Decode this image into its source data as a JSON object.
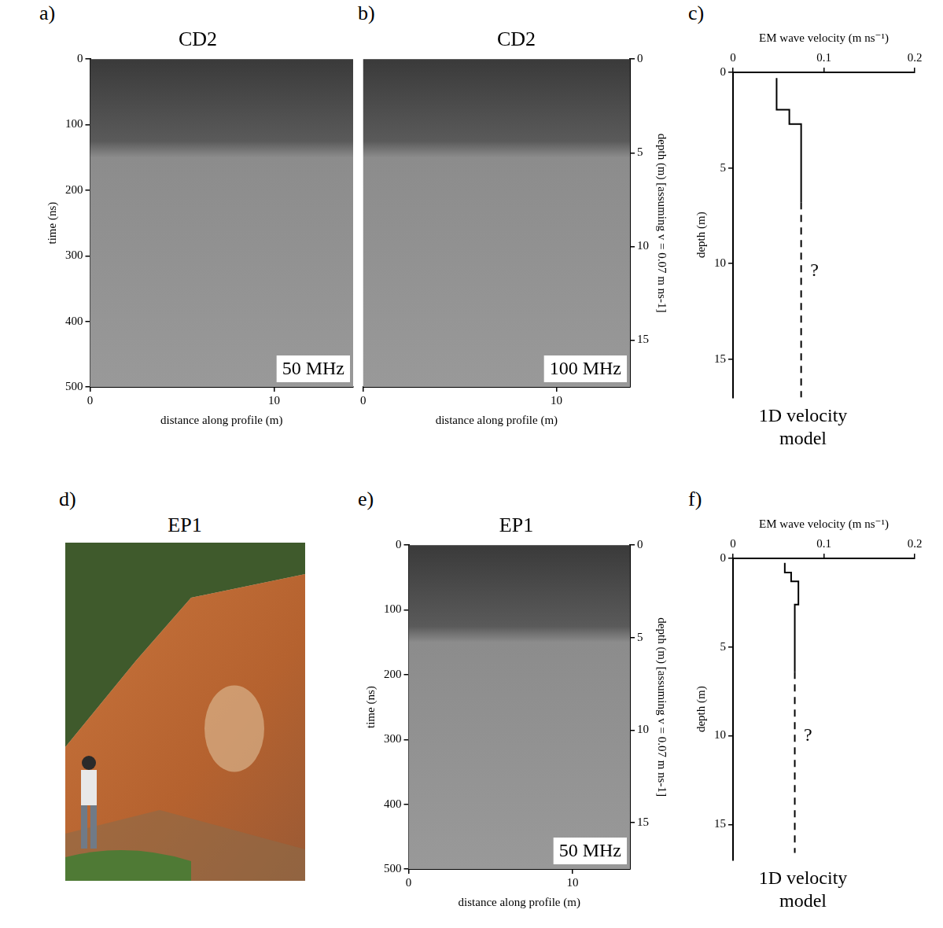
{
  "chart_data": [
    {
      "panel": "a)",
      "type": "radargram",
      "title": "CD2",
      "label": "50 MHz",
      "x_label": "distance along profile (m)",
      "y_label": "time (ns)",
      "xlim": [
        0,
        14.3
      ],
      "xticks": [
        0,
        10
      ],
      "ylim": [
        0,
        500
      ],
      "yticks": [
        0,
        100,
        200,
        300,
        400,
        500
      ]
    },
    {
      "panel": "b)",
      "type": "radargram",
      "title": "CD2",
      "label": "100 MHz",
      "x_label": "distance along profile (m)",
      "y2_label": "depth (m) [assuming v = 0.07 m ns-1]",
      "xlim": [
        0,
        13.8
      ],
      "xticks": [
        0,
        10
      ],
      "y2lim": [
        0,
        17.5
      ],
      "y2ticks": [
        0,
        5,
        10,
        15
      ]
    },
    {
      "panel": "c)",
      "type": "line",
      "title": "1D velocity model",
      "x_label": "EM wave velocity (m ns⁻¹)",
      "y_label": "depth (m)",
      "xlim": [
        0,
        0.2
      ],
      "xticks": [
        0,
        0.1,
        0.2
      ],
      "ylim": [
        0,
        17
      ],
      "yticks": [
        0,
        5,
        10,
        15
      ],
      "series": [
        {
          "line_style": "solid",
          "color": "#000000",
          "x": [
            0.048,
            0.048,
            0.062,
            0.062,
            0.075,
            0.075
          ],
          "y": [
            0.3,
            1.95,
            1.95,
            2.7,
            2.7,
            6.8
          ]
        },
        {
          "line_style": "dashed",
          "color": "#000000",
          "x": [
            0.075,
            0.075
          ],
          "y": [
            6.8,
            17
          ]
        }
      ],
      "annotations": [
        {
          "text": "?",
          "x": 0.085,
          "y": 10.4
        }
      ]
    },
    {
      "panel": "d)",
      "type": "image",
      "title": "EP1"
    },
    {
      "panel": "e)",
      "type": "radargram",
      "title": "EP1",
      "label": "50 MHz",
      "x_label": "distance along profile (m)",
      "y_label": "time (ns)",
      "y2_label": "depth (m) [assuming v = 0.07 m ns-1]",
      "xlim": [
        0,
        13.5
      ],
      "xticks": [
        0,
        10
      ],
      "ylim": [
        0,
        500
      ],
      "yticks": [
        0,
        100,
        200,
        300,
        400,
        500
      ],
      "y2lim": [
        0,
        17.5
      ],
      "y2ticks": [
        0,
        5,
        10,
        15
      ]
    },
    {
      "panel": "f)",
      "type": "line",
      "title": "1D velocity model",
      "x_label": "EM wave velocity (m ns⁻¹)",
      "y_label": "depth (m)",
      "xlim": [
        0,
        0.2
      ],
      "xticks": [
        0,
        0.1,
        0.2
      ],
      "ylim": [
        0,
        17
      ],
      "yticks": [
        0,
        5,
        10,
        15
      ],
      "series": [
        {
          "line_style": "solid",
          "color": "#000000",
          "x": [
            0.057,
            0.057,
            0.064,
            0.064,
            0.072,
            0.072,
            0.068,
            0.068
          ],
          "y": [
            0.25,
            0.8,
            0.8,
            1.3,
            1.3,
            2.6,
            2.6,
            6.4
          ]
        },
        {
          "line_style": "dashed",
          "color": "#000000",
          "x": [
            0.068,
            0.068
          ],
          "y": [
            6.4,
            16.6
          ]
        }
      ],
      "annotations": [
        {
          "text": "?",
          "x": 0.078,
          "y": 10.0
        }
      ]
    }
  ]
}
